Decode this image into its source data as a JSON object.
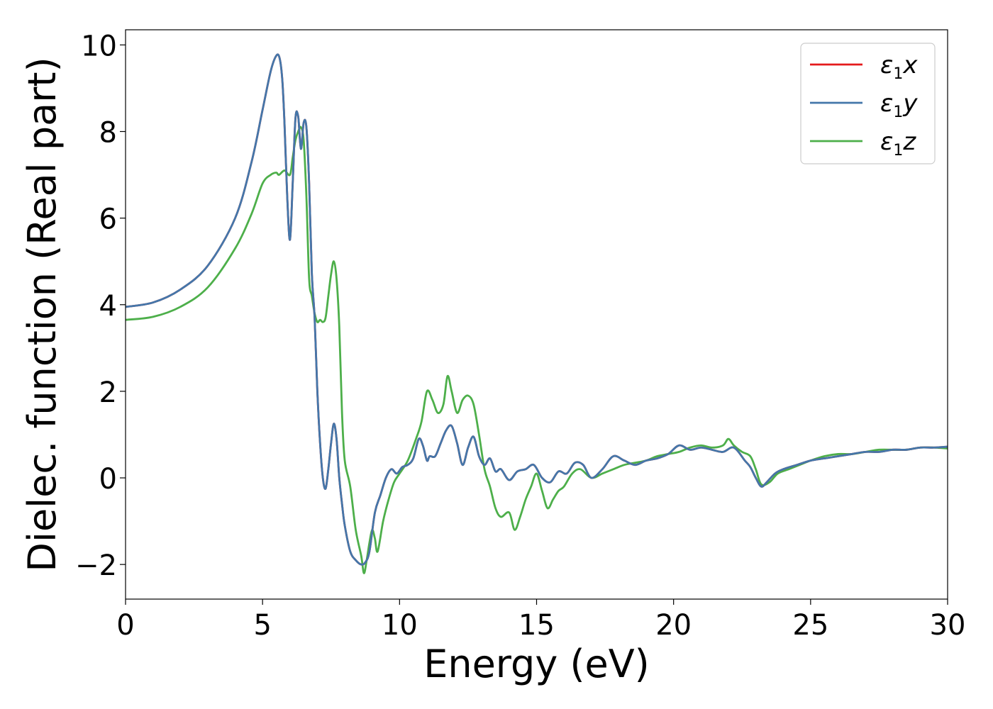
{
  "chart_data": {
    "type": "line",
    "title": "",
    "xlabel": "Energy (eV)",
    "ylabel": "Dielec. function (Real part)",
    "xlim": [
      0,
      30
    ],
    "ylim": [
      -2.8,
      10.35
    ],
    "xticks": [
      0,
      5,
      10,
      15,
      20,
      25,
      30
    ],
    "xtick_labels": [
      "0",
      "5",
      "10",
      "15",
      "20",
      "25",
      "30"
    ],
    "yticks": [
      -2,
      0,
      2,
      4,
      6,
      8,
      10
    ],
    "ytick_labels": [
      "−2",
      "0",
      "2",
      "4",
      "6",
      "8",
      "10"
    ],
    "grid": false,
    "legend_position": "top-right",
    "series": [
      {
        "name": "ε₁x",
        "legend": {
          "symbol": "ε",
          "sub": "1",
          "axis": "x"
        },
        "color": "#e41a1c",
        "x": [
          0,
          1,
          2,
          3,
          4,
          4.6,
          5.0,
          5.3,
          5.5,
          5.62,
          5.72,
          5.8,
          5.9,
          6.0,
          6.1,
          6.2,
          6.3,
          6.4,
          6.5,
          6.6,
          6.7,
          6.8,
          6.9,
          7.0,
          7.1,
          7.2,
          7.3,
          7.4,
          7.5,
          7.6,
          7.7,
          7.8,
          7.9,
          8.0,
          8.2,
          8.4,
          8.6,
          8.75,
          8.9,
          9.1,
          9.3,
          9.5,
          9.7,
          9.9,
          10.1,
          10.3,
          10.5,
          10.7,
          10.85,
          11.0,
          11.1,
          11.3,
          11.5,
          11.7,
          11.9,
          12.1,
          12.3,
          12.5,
          12.7,
          12.9,
          13.1,
          13.3,
          13.5,
          13.7,
          14.0,
          14.3,
          14.6,
          14.9,
          15.2,
          15.5,
          15.8,
          16.1,
          16.4,
          16.7,
          17.0,
          17.4,
          17.8,
          18.2,
          18.6,
          19.0,
          19.4,
          19.8,
          20.2,
          20.6,
          21.0,
          21.4,
          21.8,
          22.2,
          22.6,
          22.8,
          23.0,
          23.2,
          23.4,
          23.7,
          24.0,
          24.5,
          25.0,
          25.5,
          26.0,
          26.5,
          27.0,
          27.5,
          28.0,
          28.5,
          29.0,
          29.5,
          30.0
        ],
        "y": [
          3.95,
          4.05,
          4.35,
          4.9,
          6.0,
          7.3,
          8.5,
          9.4,
          9.75,
          9.7,
          9.2,
          8.2,
          6.5,
          5.5,
          6.8,
          8.3,
          8.35,
          7.6,
          8.2,
          8.1,
          6.8,
          4.7,
          3.7,
          2.0,
          0.8,
          0.0,
          -0.25,
          0.2,
          0.8,
          1.25,
          0.9,
          0.0,
          -0.6,
          -1.1,
          -1.7,
          -1.9,
          -2.0,
          -1.95,
          -1.7,
          -0.8,
          -0.4,
          0.0,
          0.2,
          0.1,
          0.25,
          0.3,
          0.45,
          0.9,
          0.75,
          0.4,
          0.5,
          0.5,
          0.8,
          1.1,
          1.2,
          0.8,
          0.3,
          0.7,
          0.95,
          0.5,
          0.3,
          0.45,
          0.15,
          0.2,
          -0.05,
          0.15,
          0.2,
          0.3,
          0.0,
          -0.1,
          0.15,
          0.1,
          0.35,
          0.3,
          0.0,
          0.2,
          0.5,
          0.4,
          0.3,
          0.4,
          0.45,
          0.55,
          0.75,
          0.65,
          0.7,
          0.65,
          0.6,
          0.7,
          0.4,
          0.25,
          0.0,
          -0.2,
          -0.1,
          0.1,
          0.2,
          0.3,
          0.4,
          0.45,
          0.5,
          0.55,
          0.6,
          0.6,
          0.65,
          0.65,
          0.7,
          0.7,
          0.72
        ]
      },
      {
        "name": "ε₁y",
        "legend": {
          "symbol": "ε",
          "sub": "1",
          "axis": "y"
        },
        "color": "#4477aa",
        "x": [
          0,
          1,
          2,
          3,
          4,
          4.6,
          5.0,
          5.3,
          5.5,
          5.62,
          5.72,
          5.8,
          5.9,
          6.0,
          6.1,
          6.2,
          6.3,
          6.4,
          6.5,
          6.6,
          6.7,
          6.8,
          6.9,
          7.0,
          7.1,
          7.2,
          7.3,
          7.4,
          7.5,
          7.6,
          7.7,
          7.8,
          7.9,
          8.0,
          8.2,
          8.4,
          8.6,
          8.75,
          8.9,
          9.1,
          9.3,
          9.5,
          9.7,
          9.9,
          10.1,
          10.3,
          10.5,
          10.7,
          10.85,
          11.0,
          11.1,
          11.3,
          11.5,
          11.7,
          11.9,
          12.1,
          12.3,
          12.5,
          12.7,
          12.9,
          13.1,
          13.3,
          13.5,
          13.7,
          14.0,
          14.3,
          14.6,
          14.9,
          15.2,
          15.5,
          15.8,
          16.1,
          16.4,
          16.7,
          17.0,
          17.4,
          17.8,
          18.2,
          18.6,
          19.0,
          19.4,
          19.8,
          20.2,
          20.6,
          21.0,
          21.4,
          21.8,
          22.2,
          22.6,
          22.8,
          23.0,
          23.2,
          23.4,
          23.7,
          24.0,
          24.5,
          25.0,
          25.5,
          26.0,
          26.5,
          27.0,
          27.5,
          28.0,
          28.5,
          29.0,
          29.5,
          30.0
        ],
        "y": [
          3.95,
          4.05,
          4.35,
          4.9,
          6.0,
          7.3,
          8.5,
          9.4,
          9.75,
          9.7,
          9.2,
          8.2,
          6.5,
          5.5,
          6.8,
          8.3,
          8.35,
          7.6,
          8.2,
          8.1,
          6.8,
          4.7,
          3.7,
          2.0,
          0.8,
          0.0,
          -0.25,
          0.2,
          0.8,
          1.25,
          0.9,
          0.0,
          -0.6,
          -1.1,
          -1.7,
          -1.9,
          -2.0,
          -1.95,
          -1.7,
          -0.8,
          -0.4,
          0.0,
          0.2,
          0.1,
          0.25,
          0.3,
          0.45,
          0.9,
          0.75,
          0.4,
          0.5,
          0.5,
          0.8,
          1.1,
          1.2,
          0.8,
          0.3,
          0.7,
          0.95,
          0.5,
          0.3,
          0.45,
          0.15,
          0.2,
          -0.05,
          0.15,
          0.2,
          0.3,
          0.0,
          -0.1,
          0.15,
          0.1,
          0.35,
          0.3,
          0.0,
          0.2,
          0.5,
          0.4,
          0.3,
          0.4,
          0.45,
          0.55,
          0.75,
          0.65,
          0.7,
          0.65,
          0.6,
          0.7,
          0.4,
          0.25,
          0.0,
          -0.2,
          -0.1,
          0.1,
          0.2,
          0.3,
          0.4,
          0.45,
          0.5,
          0.55,
          0.6,
          0.6,
          0.65,
          0.65,
          0.7,
          0.7,
          0.72
        ]
      },
      {
        "name": "ε₁z",
        "legend": {
          "symbol": "ε",
          "sub": "1",
          "axis": "z"
        },
        "color": "#4daf4a",
        "x": [
          0,
          1,
          2,
          3,
          4,
          4.6,
          5.0,
          5.3,
          5.5,
          5.6,
          5.8,
          6.0,
          6.1,
          6.2,
          6.3,
          6.4,
          6.5,
          6.6,
          6.7,
          6.8,
          6.9,
          7.0,
          7.1,
          7.2,
          7.3,
          7.4,
          7.5,
          7.6,
          7.7,
          7.8,
          7.9,
          8.0,
          8.2,
          8.4,
          8.6,
          8.7,
          8.8,
          8.9,
          9.0,
          9.1,
          9.2,
          9.4,
          9.6,
          9.8,
          10.0,
          10.3,
          10.6,
          10.8,
          11.0,
          11.2,
          11.4,
          11.6,
          11.75,
          11.9,
          12.1,
          12.3,
          12.5,
          12.7,
          12.9,
          13.1,
          13.3,
          13.5,
          13.7,
          14.0,
          14.2,
          14.4,
          14.6,
          14.8,
          15.0,
          15.2,
          15.4,
          15.6,
          15.8,
          16.0,
          16.3,
          16.6,
          17.0,
          17.4,
          17.8,
          18.2,
          18.6,
          19.0,
          19.4,
          19.8,
          20.2,
          20.6,
          21.0,
          21.4,
          21.8,
          22.0,
          22.2,
          22.5,
          22.8,
          23.0,
          23.2,
          23.5,
          23.8,
          24.2,
          24.6,
          25.0,
          25.5,
          26.0,
          26.5,
          27.0,
          27.5,
          28.0,
          28.5,
          29.0,
          29.5,
          30.0
        ],
        "y": [
          3.65,
          3.72,
          3.95,
          4.4,
          5.3,
          6.1,
          6.8,
          7.0,
          7.05,
          7.0,
          7.1,
          7.0,
          7.4,
          7.8,
          8.0,
          8.1,
          7.8,
          6.5,
          4.6,
          4.2,
          3.8,
          3.6,
          3.65,
          3.6,
          3.7,
          4.2,
          4.7,
          5.0,
          4.6,
          3.5,
          1.5,
          0.4,
          -0.2,
          -1.2,
          -1.8,
          -2.2,
          -1.9,
          -1.5,
          -1.2,
          -1.4,
          -1.7,
          -1.0,
          -0.5,
          -0.1,
          0.1,
          0.4,
          0.9,
          1.3,
          2.0,
          1.8,
          1.5,
          1.7,
          2.35,
          2.0,
          1.5,
          1.8,
          1.9,
          1.7,
          1.0,
          0.2,
          -0.2,
          -0.7,
          -0.9,
          -0.8,
          -1.2,
          -0.9,
          -0.5,
          -0.2,
          0.1,
          -0.3,
          -0.7,
          -0.5,
          -0.3,
          -0.2,
          0.1,
          0.2,
          0.0,
          0.1,
          0.2,
          0.3,
          0.35,
          0.4,
          0.5,
          0.55,
          0.6,
          0.7,
          0.75,
          0.7,
          0.75,
          0.9,
          0.75,
          0.6,
          0.5,
          0.2,
          -0.15,
          -0.1,
          0.1,
          0.2,
          0.3,
          0.4,
          0.5,
          0.55,
          0.55,
          0.6,
          0.65,
          0.65,
          0.65,
          0.7,
          0.7,
          0.68
        ]
      }
    ]
  }
}
